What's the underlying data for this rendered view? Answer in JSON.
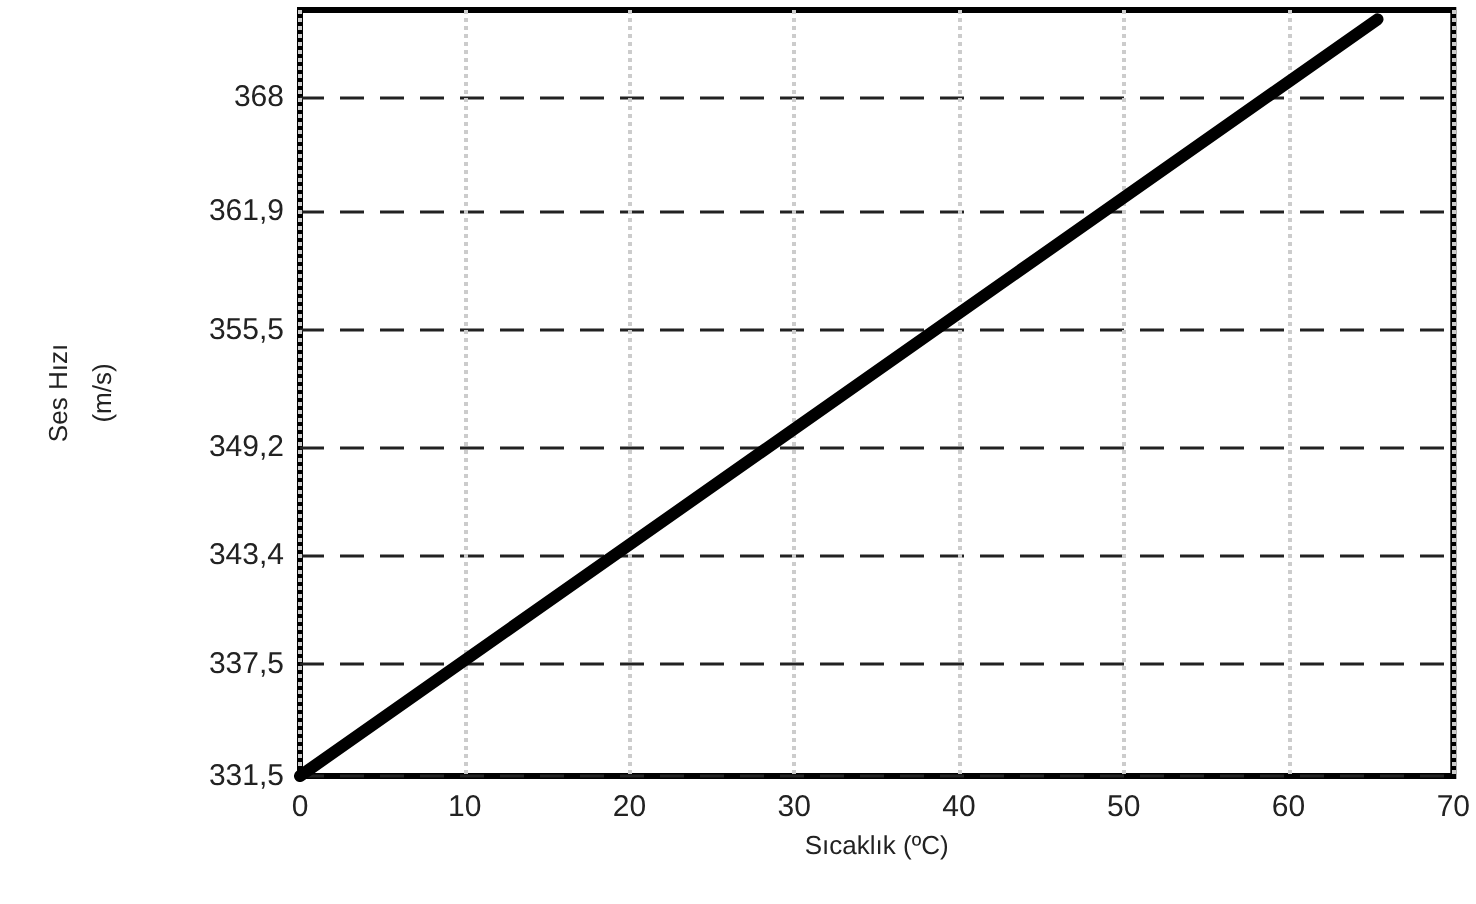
{
  "chart_data": {
    "type": "line",
    "xlabel": "Sıcaklık (ºC)",
    "ylabel": "Ses Hızı\n(m/s)",
    "series": [
      {
        "color": "#000000",
        "x": [
          0,
          65.4
        ],
        "values": [
          331.5,
          372.2
        ]
      }
    ],
    "xlim": [
      0,
      70
    ],
    "xticks": [
      0,
      10,
      20,
      30,
      40,
      50,
      60,
      70
    ],
    "ylim": [
      331.5,
      372.7
    ],
    "yticks": [
      {
        "value": 331.5,
        "label": "331,5"
      },
      {
        "value": 337.5,
        "label": "337,5"
      },
      {
        "value": 343.4,
        "label": "343,4"
      },
      {
        "value": 349.2,
        "label": "349,2"
      },
      {
        "value": 355.5,
        "label": "355,5"
      },
      {
        "value": 361.9,
        "label": "361,9"
      },
      368
    ],
    "grid": true,
    "marker": "none",
    "line_style": "solid"
  }
}
